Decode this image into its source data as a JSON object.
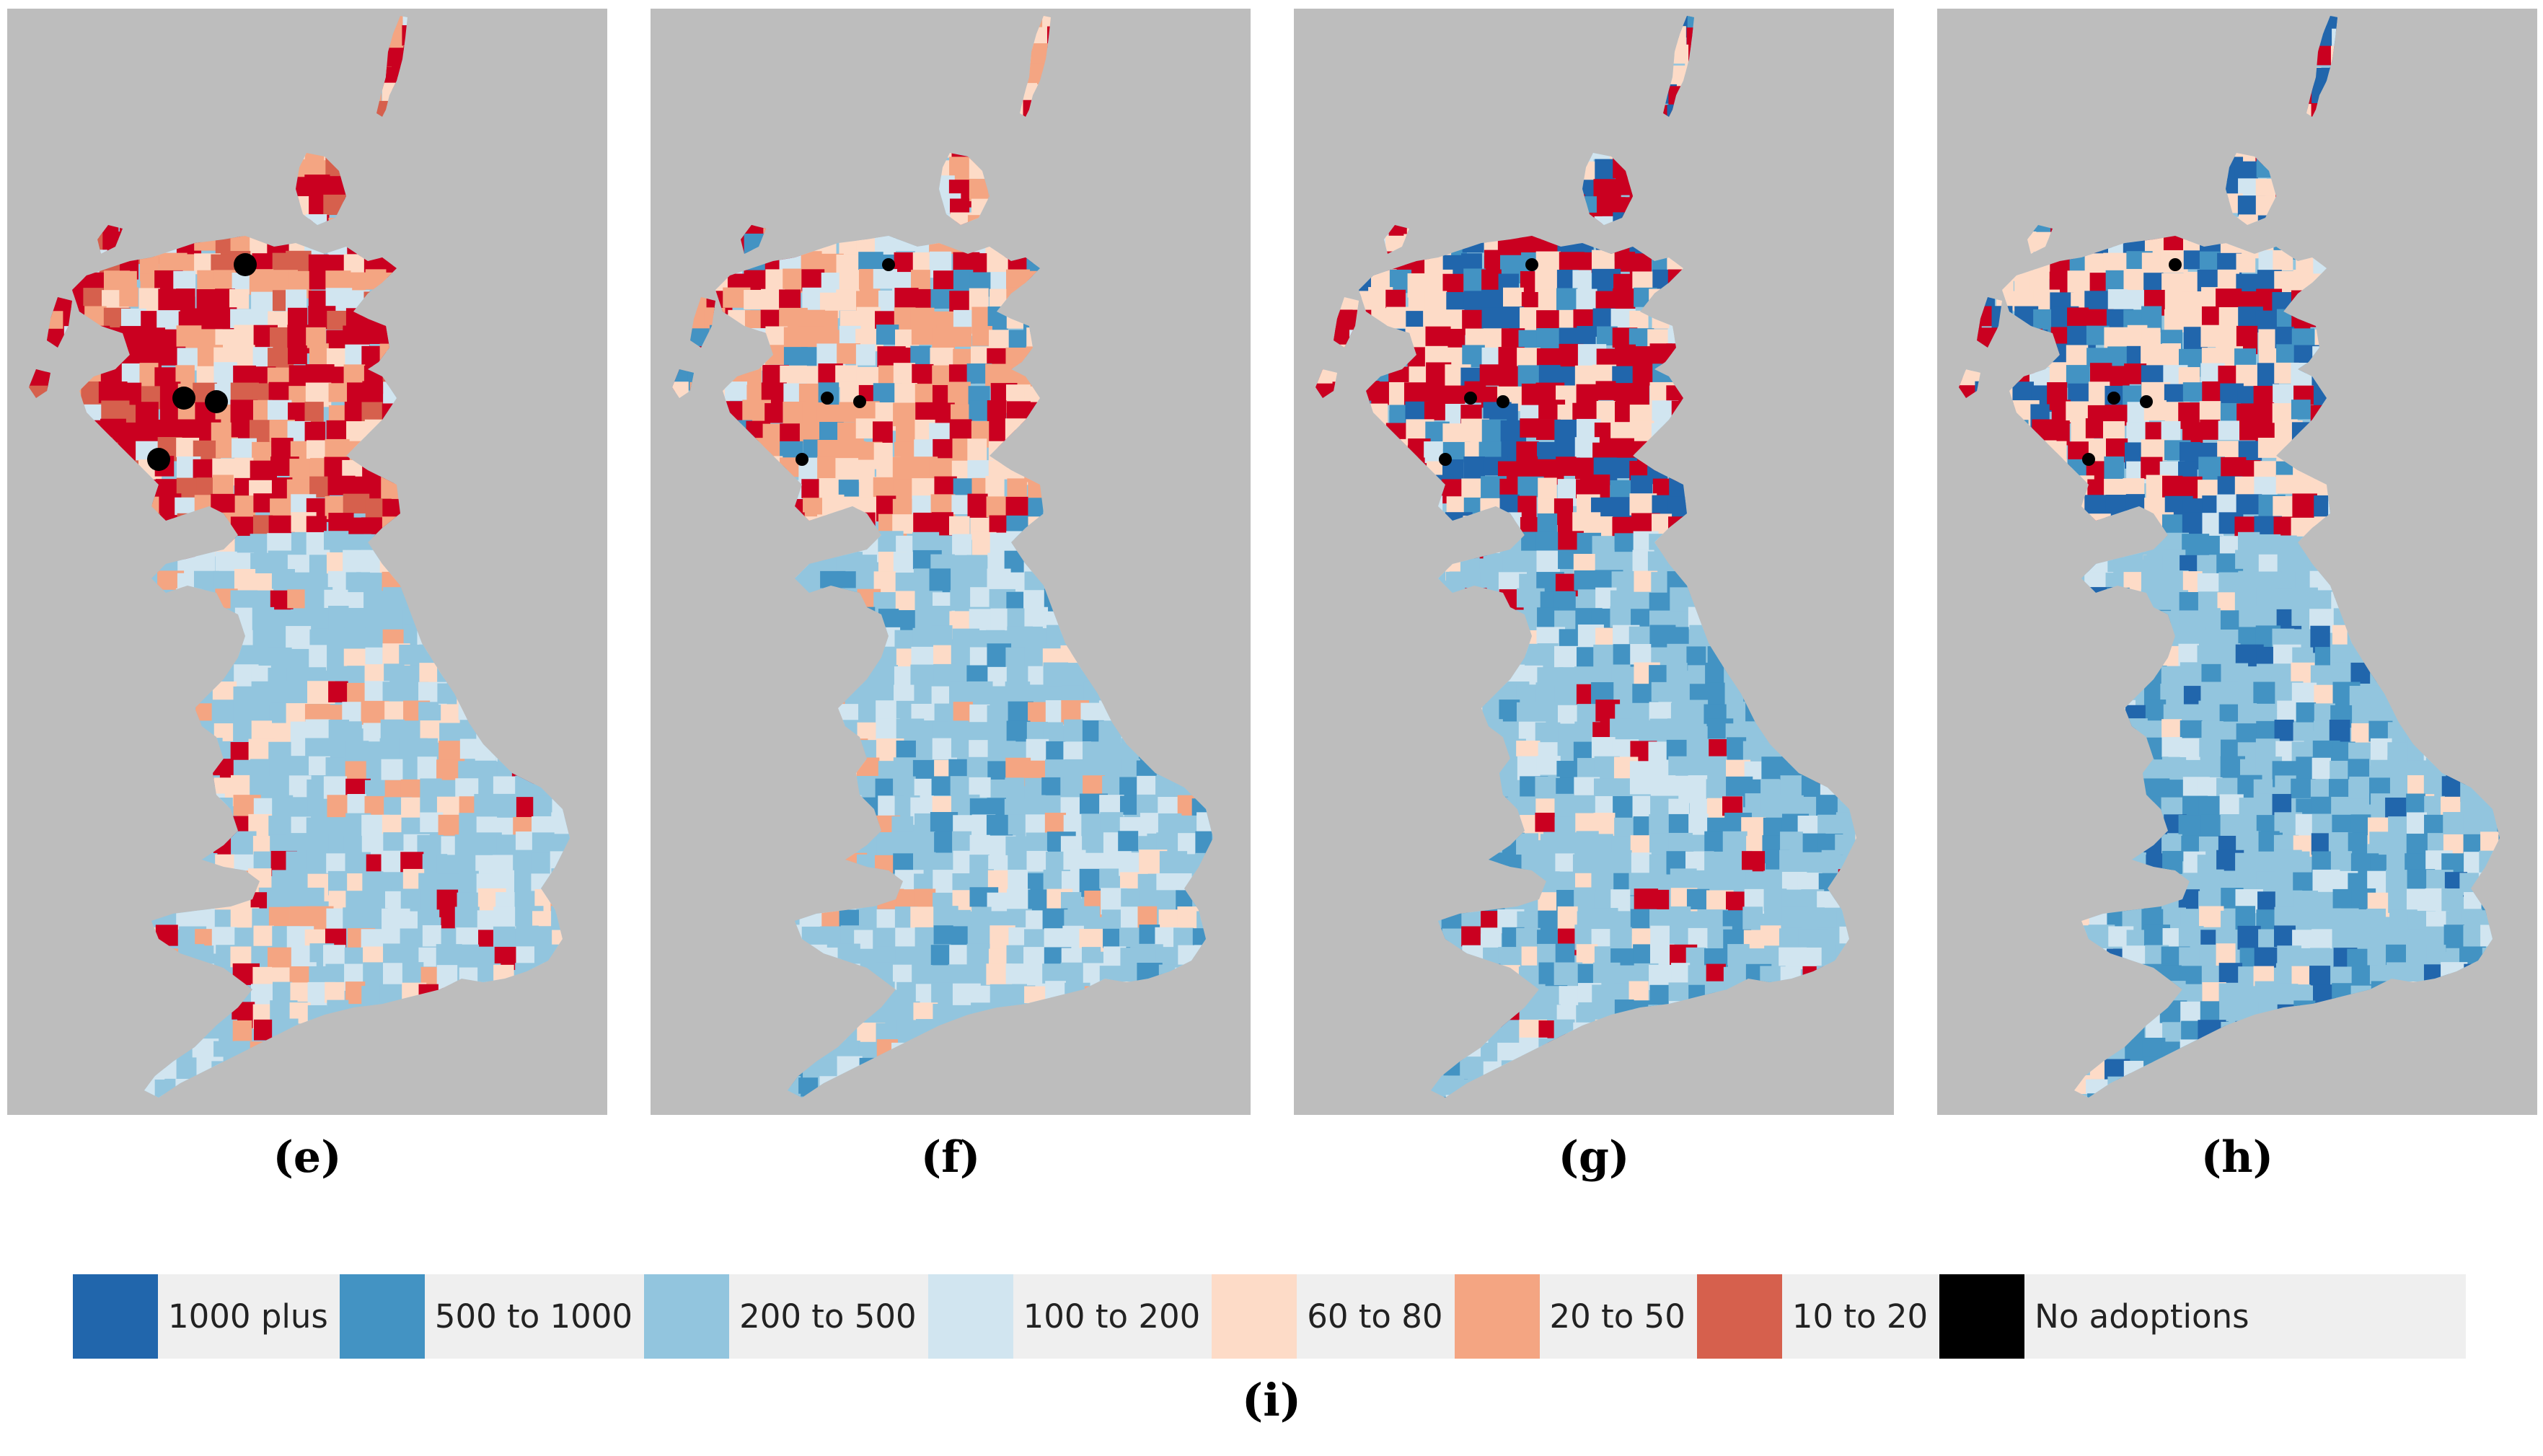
{
  "colors": {
    "background": "#bdbdbd",
    "c1000plus": "#2166ac",
    "c500to1000": "#4393c3",
    "c200to500": "#92c5de",
    "c100to200": "#d1e5f0",
    "c60to80": "#fddbc7",
    "c20to50": "#f4a582",
    "c10to20": "#d6604d",
    "cDeepRed": "#ca0020",
    "noAdoptions": "#000000"
  },
  "panels": [
    {
      "label": "(e)",
      "scheme": [
        "c200to500",
        "c100to200",
        "c60to80",
        "c20to50",
        "cDeepRed",
        "c10to20"
      ]
    },
    {
      "label": "(f)",
      "scheme": [
        "c200to500",
        "c100to200",
        "c500to1000",
        "c60to80",
        "c20to50",
        "cDeepRed"
      ]
    },
    {
      "label": "(g)",
      "scheme": [
        "c200to500",
        "c500to1000",
        "c100to200",
        "c60to80",
        "cDeepRed",
        "c1000plus"
      ]
    },
    {
      "label": "(h)",
      "scheme": [
        "c200to500",
        "c500to1000",
        "c100to200",
        "c1000plus",
        "c60to80",
        "cDeepRed"
      ]
    }
  ],
  "legend": {
    "items": [
      {
        "label": "1000 plus",
        "color": "#2166ac"
      },
      {
        "label": "500 to 1000",
        "color": "#4393c3"
      },
      {
        "label": "200 to 500",
        "color": "#92c5de"
      },
      {
        "label": "100 to 200",
        "color": "#d1e5f0"
      },
      {
        "label": "60 to 80",
        "color": "#fddbc7"
      },
      {
        "label": "20 to 50",
        "color": "#f4a582"
      },
      {
        "label": "10 to 20",
        "color": "#d6604d"
      },
      {
        "label": "No adoptions",
        "color": "#000000"
      }
    ],
    "caption": "(i)"
  }
}
